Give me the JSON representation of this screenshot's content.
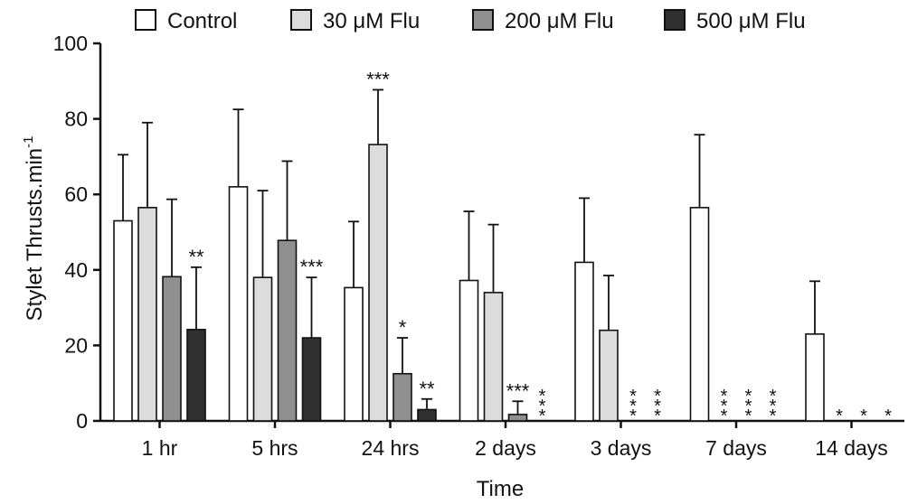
{
  "chart_data": {
    "type": "bar",
    "xlabel": "Time",
    "ylabel": "Stylet Thrusts.min",
    "ylabel_sup": "-1",
    "ylim": [
      0,
      100
    ],
    "yticks": [
      "0",
      "20",
      "40",
      "60",
      "80",
      "100"
    ],
    "grid": false,
    "legend_placement": "top",
    "categories": [
      "1 hr",
      "5 hrs",
      "24 hrs",
      "2 days",
      "3 days",
      "7 days",
      "14 days"
    ],
    "series": [
      {
        "name": "Control",
        "color": "#ffffff",
        "values": [
          53,
          62,
          35.3,
          37.2,
          42,
          56.5,
          23
        ],
        "errors": [
          17.5,
          20.5,
          17.5,
          18.3,
          17,
          19.3,
          14
        ],
        "significance": [
          "",
          "",
          "",
          "",
          "",
          "",
          ""
        ]
      },
      {
        "name": "30 μM Flu",
        "color": "#dcdcdc",
        "values": [
          56.5,
          38,
          73.2,
          34,
          24,
          0,
          0
        ],
        "errors": [
          22.5,
          23,
          14.5,
          18,
          14.5,
          0,
          0
        ],
        "significance": [
          "",
          "",
          "***",
          "",
          "",
          "***",
          "*"
        ]
      },
      {
        "name": "200 μM Flu",
        "color": "#8f8f8f",
        "values": [
          38.2,
          47.8,
          12.5,
          1.7,
          0,
          0,
          0
        ],
        "errors": [
          20.5,
          21,
          9.5,
          3.5,
          0,
          0,
          0
        ],
        "significance": [
          "",
          "",
          "*",
          "***",
          "***",
          "***",
          "*"
        ]
      },
      {
        "name": "500 μM Flu",
        "color": "#2f2f2f",
        "values": [
          24.2,
          22,
          3,
          0,
          0,
          0,
          0
        ],
        "errors": [
          16.5,
          16,
          2.8,
          0,
          0,
          0,
          0
        ],
        "significance": [
          "**",
          "***",
          "**",
          "***",
          "***",
          "***",
          "*"
        ]
      }
    ]
  }
}
